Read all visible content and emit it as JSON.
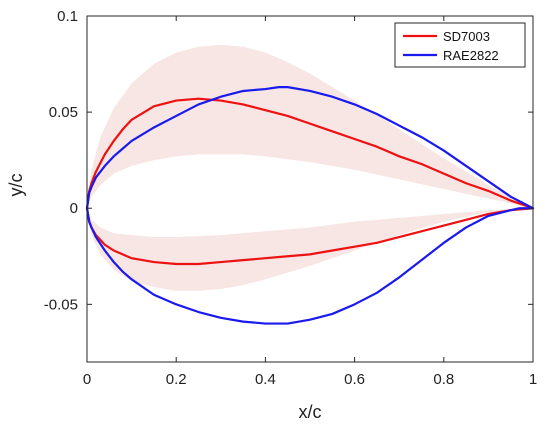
{
  "chart_data": {
    "type": "line",
    "xlabel": "x/c",
    "ylabel": "y/c",
    "xlim": [
      0,
      1
    ],
    "ylim": [
      -0.08,
      0.1
    ],
    "xticks": [
      0,
      0.2,
      0.4,
      0.6,
      0.8,
      1
    ],
    "xtick_labels": [
      "0",
      "0.2",
      "0.4",
      "0.6",
      "0.8",
      "1"
    ],
    "yticks": [
      -0.05,
      0,
      0.05,
      0.1
    ],
    "ytick_labels": [
      "-0.05",
      "0",
      "0.05",
      "0.1"
    ],
    "grid": false,
    "legend_position": "top-right",
    "band": {
      "color": "#f7e6e4",
      "upper_outer": {
        "x": [
          0,
          0.01,
          0.03,
          0.06,
          0.1,
          0.15,
          0.2,
          0.25,
          0.3,
          0.35,
          0.4,
          0.45,
          0.5,
          0.6,
          0.7,
          0.8,
          0.9,
          1.0
        ],
        "y": [
          0,
          0.02,
          0.037,
          0.052,
          0.065,
          0.075,
          0.081,
          0.084,
          0.085,
          0.084,
          0.081,
          0.076,
          0.07,
          0.056,
          0.041,
          0.026,
          0.012,
          0
        ]
      },
      "upper_inner": {
        "x": [
          0,
          0.01,
          0.03,
          0.06,
          0.1,
          0.15,
          0.2,
          0.25,
          0.3,
          0.35,
          0.4,
          0.5,
          0.6,
          0.7,
          0.8,
          0.9,
          1.0
        ],
        "y": [
          0,
          0.006,
          0.012,
          0.018,
          0.022,
          0.025,
          0.027,
          0.028,
          0.028,
          0.028,
          0.027,
          0.024,
          0.02,
          0.015,
          0.01,
          0.005,
          0
        ]
      },
      "lower_inner": {
        "x": [
          0,
          0.01,
          0.03,
          0.06,
          0.1,
          0.15,
          0.2,
          0.3,
          0.4,
          0.5,
          0.6,
          0.7,
          0.8,
          0.9,
          1.0
        ],
        "y": [
          0,
          -0.006,
          -0.01,
          -0.013,
          -0.014,
          -0.015,
          -0.015,
          -0.014,
          -0.012,
          -0.01,
          -0.007,
          -0.005,
          -0.003,
          -0.001,
          0
        ]
      },
      "lower_outer": {
        "x": [
          0,
          0.01,
          0.03,
          0.06,
          0.1,
          0.15,
          0.2,
          0.25,
          0.3,
          0.35,
          0.4,
          0.5,
          0.6,
          0.7,
          0.8,
          0.9,
          1.0
        ],
        "y": [
          0,
          -0.014,
          -0.024,
          -0.032,
          -0.038,
          -0.041,
          -0.043,
          -0.043,
          -0.042,
          -0.04,
          -0.037,
          -0.03,
          -0.022,
          -0.014,
          -0.007,
          -0.002,
          0
        ]
      }
    },
    "series": [
      {
        "name": "SD7003",
        "color": "#ee1111",
        "x": [
          0,
          0.005,
          0.01,
          0.02,
          0.04,
          0.06,
          0.08,
          0.1,
          0.15,
          0.2,
          0.25,
          0.3,
          0.35,
          0.4,
          0.45,
          0.5,
          0.55,
          0.6,
          0.65,
          0.7,
          0.75,
          0.8,
          0.85,
          0.9,
          0.95,
          1.0,
          0.95,
          0.9,
          0.85,
          0.8,
          0.75,
          0.7,
          0.65,
          0.6,
          0.55,
          0.5,
          0.45,
          0.4,
          0.35,
          0.3,
          0.25,
          0.2,
          0.15,
          0.1,
          0.08,
          0.06,
          0.04,
          0.02,
          0.01,
          0.005,
          0
        ],
        "y": [
          0,
          0.009,
          0.013,
          0.019,
          0.028,
          0.035,
          0.041,
          0.046,
          0.053,
          0.056,
          0.057,
          0.056,
          0.054,
          0.051,
          0.048,
          0.044,
          0.04,
          0.036,
          0.032,
          0.027,
          0.023,
          0.018,
          0.013,
          0.009,
          0.004,
          0,
          -0.001,
          -0.003,
          -0.006,
          -0.009,
          -0.012,
          -0.015,
          -0.018,
          -0.02,
          -0.022,
          -0.024,
          -0.025,
          -0.026,
          -0.027,
          -0.028,
          -0.029,
          -0.029,
          -0.028,
          -0.026,
          -0.024,
          -0.022,
          -0.019,
          -0.014,
          -0.01,
          -0.007,
          0
        ]
      },
      {
        "name": "RAE2822",
        "color": "#1a1aee",
        "x": [
          0,
          0.005,
          0.01,
          0.02,
          0.04,
          0.06,
          0.08,
          0.1,
          0.15,
          0.2,
          0.25,
          0.3,
          0.35,
          0.4,
          0.43,
          0.45,
          0.5,
          0.55,
          0.6,
          0.65,
          0.7,
          0.75,
          0.8,
          0.85,
          0.9,
          0.95,
          1.0,
          0.97,
          0.95,
          0.9,
          0.85,
          0.8,
          0.75,
          0.7,
          0.65,
          0.6,
          0.55,
          0.5,
          0.45,
          0.4,
          0.35,
          0.3,
          0.25,
          0.2,
          0.15,
          0.1,
          0.08,
          0.06,
          0.04,
          0.02,
          0.01,
          0.005,
          0
        ],
        "y": [
          0,
          0.008,
          0.011,
          0.016,
          0.022,
          0.027,
          0.031,
          0.035,
          0.042,
          0.048,
          0.054,
          0.058,
          0.061,
          0.062,
          0.063,
          0.063,
          0.061,
          0.058,
          0.054,
          0.049,
          0.043,
          0.037,
          0.03,
          0.022,
          0.014,
          0.006,
          0,
          0,
          -0.001,
          -0.004,
          -0.01,
          -0.018,
          -0.027,
          -0.036,
          -0.044,
          -0.05,
          -0.055,
          -0.058,
          -0.06,
          -0.06,
          -0.059,
          -0.057,
          -0.054,
          -0.05,
          -0.045,
          -0.037,
          -0.033,
          -0.028,
          -0.022,
          -0.015,
          -0.01,
          -0.007,
          0
        ]
      }
    ]
  }
}
